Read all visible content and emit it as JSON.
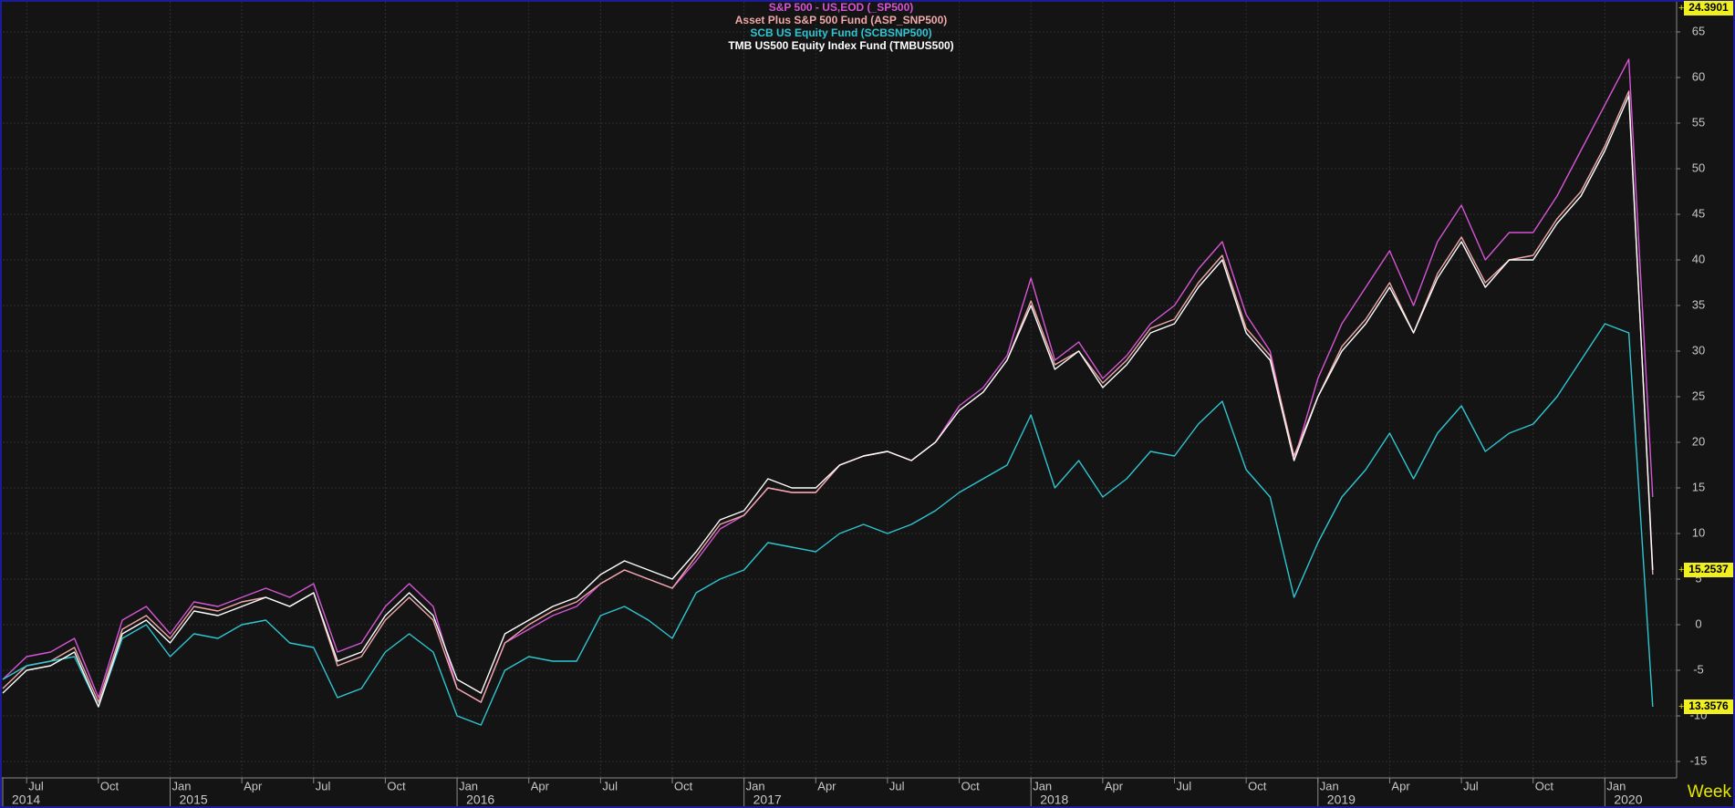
{
  "chart_data": {
    "type": "line",
    "x": [
      "2014-06",
      "2014-07",
      "2014-08",
      "2014-09",
      "2014-10",
      "2014-11",
      "2014-12",
      "2015-01",
      "2015-02",
      "2015-03",
      "2015-04",
      "2015-05",
      "2015-06",
      "2015-07",
      "2015-08",
      "2015-09",
      "2015-10",
      "2015-11",
      "2015-12",
      "2016-01",
      "2016-02",
      "2016-03",
      "2016-04",
      "2016-05",
      "2016-06",
      "2016-07",
      "2016-08",
      "2016-09",
      "2016-10",
      "2016-11",
      "2016-12",
      "2017-01",
      "2017-02",
      "2017-03",
      "2017-04",
      "2017-05",
      "2017-06",
      "2017-07",
      "2017-08",
      "2017-09",
      "2017-10",
      "2017-11",
      "2017-12",
      "2018-01",
      "2018-02",
      "2018-03",
      "2018-04",
      "2018-05",
      "2018-06",
      "2018-07",
      "2018-08",
      "2018-09",
      "2018-10",
      "2018-11",
      "2018-12",
      "2019-01",
      "2019-02",
      "2019-03",
      "2019-04",
      "2019-05",
      "2019-06",
      "2019-07",
      "2019-08",
      "2019-09",
      "2019-10",
      "2019-11",
      "2019-12",
      "2020-01",
      "2020-02",
      "2020-03"
    ],
    "series": [
      {
        "name": "S&P  500  -  US,EOD  (_SP500)",
        "color": "#d655d6",
        "values": [
          -6,
          -3.5,
          -3,
          -1.5,
          -8,
          0.5,
          2,
          -1,
          2.5,
          2,
          3,
          4,
          3,
          4.5,
          -3,
          -2,
          2,
          4.5,
          2,
          -7,
          -8.5,
          -2,
          -0.5,
          1,
          2,
          4.5,
          6,
          5,
          4,
          7,
          10.5,
          12,
          15,
          14.5,
          14.5,
          17.5,
          18.5,
          19,
          18,
          20,
          24,
          26,
          29.5,
          38,
          29,
          31,
          27,
          29.5,
          33,
          35,
          39,
          42,
          34,
          30,
          18,
          27,
          33,
          37,
          41,
          35,
          42,
          46,
          40,
          43,
          43,
          47,
          52,
          57,
          62,
          14
        ]
      },
      {
        "name": "Asset  Plus  S&P  500  Fund  (ASP_SNP500)",
        "color": "#f0a8a8",
        "values": [
          -7,
          -4.5,
          -4,
          -2.5,
          -8.5,
          -0.5,
          1,
          -1.5,
          2,
          1.5,
          2.5,
          3,
          2,
          3.5,
          -4.5,
          -3.5,
          0.5,
          3,
          0.5,
          -7,
          -8.5,
          -2,
          0,
          1.5,
          2.5,
          4.5,
          6,
          5,
          4,
          7.5,
          11,
          12,
          15,
          14.5,
          14.5,
          17.5,
          18.5,
          19,
          18,
          20,
          23.5,
          25.5,
          29,
          35.5,
          28.5,
          30,
          26.5,
          29,
          32.5,
          33.5,
          37.5,
          40.5,
          32.5,
          29.5,
          18.5,
          25,
          30.5,
          33.5,
          37.5,
          32,
          38.5,
          42.5,
          37.5,
          40,
          40.5,
          44.5,
          47.5,
          52.5,
          58.5,
          5.5
        ]
      },
      {
        "name": "SCB  US  Equity  Fund  (SCBSNP500)",
        "color": "#2ec6d2",
        "values": [
          -6,
          -4.5,
          -4,
          -3.5,
          -9,
          -1.5,
          0,
          -3.5,
          -1,
          -1.5,
          0,
          0.5,
          -2,
          -2.5,
          -8,
          -7,
          -3,
          -1,
          -3,
          -10,
          -11,
          -5,
          -3.5,
          -4,
          -4,
          1,
          2,
          0.5,
          -1.5,
          3.5,
          5,
          6,
          9,
          8.5,
          8,
          10,
          11,
          10,
          11,
          12.5,
          14.5,
          16,
          17.5,
          23,
          15,
          18,
          14,
          16,
          19,
          18.5,
          22,
          24.5,
          17,
          14,
          3,
          9,
          14,
          17,
          21,
          16,
          21,
          24,
          19,
          21,
          22,
          25,
          29,
          33,
          32,
          -9
        ]
      },
      {
        "name": "TMB  US500  Equity  Index  Fund  (TMBUS500)",
        "color": "#ffffff",
        "values": [
          -7.5,
          -5,
          -4.5,
          -3,
          -9,
          -1,
          0.5,
          -2,
          1.5,
          1,
          2,
          3,
          2,
          3.5,
          -4,
          -3,
          1,
          3.5,
          1,
          -6,
          -7.5,
          -1,
          0.5,
          2,
          3,
          5.5,
          7,
          6,
          5,
          8,
          11.5,
          12.5,
          16,
          15,
          15,
          17.5,
          18.5,
          19,
          18,
          20,
          23.5,
          25.5,
          29,
          35,
          28,
          30,
          26,
          28.5,
          32,
          33,
          37,
          40,
          32,
          29,
          18,
          25,
          30,
          33,
          37,
          32,
          38,
          42,
          37,
          40,
          40,
          44,
          47,
          52,
          58,
          6
        ]
      }
    ],
    "xlim": [
      "2014-06",
      "2020-04"
    ],
    "xticks": [
      {
        "value": "2014-07",
        "label": "Jul"
      },
      {
        "value": "2014-10",
        "label": "Oct"
      },
      {
        "value": "2015-01",
        "label": "Jan"
      },
      {
        "value": "2015-04",
        "label": "Apr"
      },
      {
        "value": "2015-07",
        "label": "Jul"
      },
      {
        "value": "2015-10",
        "label": "Oct"
      },
      {
        "value": "2016-01",
        "label": "Jan"
      },
      {
        "value": "2016-04",
        "label": "Apr"
      },
      {
        "value": "2016-07",
        "label": "Jul"
      },
      {
        "value": "2016-10",
        "label": "Oct"
      },
      {
        "value": "2017-01",
        "label": "Jan"
      },
      {
        "value": "2017-04",
        "label": "Apr"
      },
      {
        "value": "2017-07",
        "label": "Jul"
      },
      {
        "value": "2017-10",
        "label": "Oct"
      },
      {
        "value": "2018-01",
        "label": "Jan"
      },
      {
        "value": "2018-04",
        "label": "Apr"
      },
      {
        "value": "2018-07",
        "label": "Jul"
      },
      {
        "value": "2018-10",
        "label": "Oct"
      },
      {
        "value": "2019-01",
        "label": "Jan"
      },
      {
        "value": "2019-04",
        "label": "Apr"
      },
      {
        "value": "2019-07",
        "label": "Jul"
      },
      {
        "value": "2019-10",
        "label": "Oct"
      },
      {
        "value": "2020-01",
        "label": "Jan"
      }
    ],
    "year_labels": [
      {
        "value": "2014-06",
        "label": "2014"
      },
      {
        "value": "2015-01",
        "label": "2015"
      },
      {
        "value": "2016-01",
        "label": "2016"
      },
      {
        "value": "2017-01",
        "label": "2017"
      },
      {
        "value": "2018-01",
        "label": "2018"
      },
      {
        "value": "2019-01",
        "label": "2019"
      },
      {
        "value": "2020-01",
        "label": "2020"
      }
    ],
    "ylim": [
      -16.8,
      68.3
    ],
    "yticks": [
      -15,
      -10,
      -5,
      0,
      5,
      10,
      15,
      20,
      25,
      30,
      35,
      40,
      45,
      50,
      55,
      60,
      65
    ],
    "grid": true,
    "price_labels": [
      {
        "label": "24.3901"
      },
      {
        "label": "15.2537",
        "series": 3
      },
      {
        "label": "13.3576",
        "series": 2
      }
    ],
    "period": "Week"
  }
}
